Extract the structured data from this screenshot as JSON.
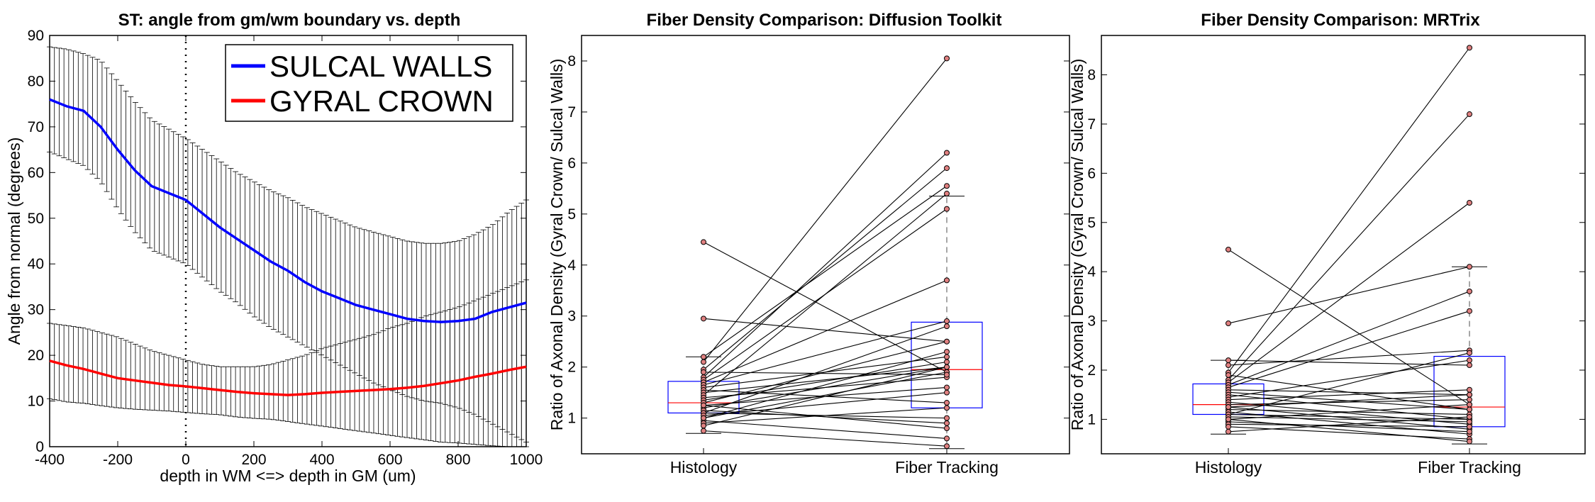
{
  "chart_data": [
    {
      "type": "line",
      "title": "ST: angle from gm/wm boundary vs. depth",
      "xlabel": "depth in WM <=> depth in GM (um)",
      "ylabel": "Angle from normal (degrees)",
      "xlim": [
        -400,
        1000
      ],
      "ylim": [
        0,
        90
      ],
      "xticks": [
        "-400",
        "-200",
        "0",
        "200",
        "400",
        "600",
        "800",
        "1000"
      ],
      "yticks": [
        "0",
        "10",
        "20",
        "30",
        "40",
        "50",
        "60",
        "70",
        "80",
        "90"
      ],
      "legend_position": "top-right",
      "reference_line_x": 0,
      "series": [
        {
          "name": "SULCAL WALLS",
          "color": "#0000ff",
          "x": [
            -400,
            -350,
            -300,
            -250,
            -200,
            -150,
            -100,
            -50,
            0,
            50,
            100,
            150,
            200,
            250,
            300,
            350,
            400,
            450,
            500,
            550,
            600,
            650,
            700,
            750,
            800,
            850,
            900,
            950,
            1000
          ],
          "values": [
            76,
            74.5,
            73.5,
            70,
            65,
            60.5,
            57,
            55.5,
            54,
            51,
            48,
            45.5,
            43,
            40.5,
            38.5,
            36,
            34,
            32.5,
            31,
            30,
            29,
            28,
            27.5,
            27.3,
            27.5,
            28,
            29.5,
            30.5,
            31.5
          ],
          "upper": [
            87.5,
            87,
            86,
            84.5,
            80,
            75.5,
            71.5,
            69.5,
            67.5,
            65,
            62.5,
            60,
            58,
            56,
            54.5,
            52.5,
            51,
            49.5,
            48,
            47,
            46,
            45,
            44.5,
            44.5,
            45,
            46.5,
            48.5,
            51.5,
            54
          ],
          "lower": [
            64.5,
            63,
            61.5,
            58,
            52,
            47,
            43,
            41.5,
            40,
            37,
            34,
            31.5,
            28.5,
            26,
            24,
            22,
            20,
            18,
            16,
            14,
            12.5,
            11,
            10,
            9.5,
            8.5,
            7,
            5,
            3,
            1
          ]
        },
        {
          "name": "GYRAL CROWN",
          "color": "#ff0000",
          "x": [
            -400,
            -350,
            -300,
            -250,
            -200,
            -150,
            -100,
            -50,
            0,
            50,
            100,
            150,
            200,
            250,
            300,
            350,
            400,
            450,
            500,
            550,
            600,
            650,
            700,
            750,
            800,
            850,
            900,
            950,
            1000
          ],
          "values": [
            18.8,
            17.8,
            17,
            16,
            15,
            14.5,
            14,
            13.5,
            13.2,
            12.8,
            12.4,
            12,
            11.7,
            11.5,
            11.3,
            11.5,
            11.8,
            12,
            12.2,
            12.4,
            12.6,
            12.9,
            13.3,
            13.9,
            14.5,
            15.3,
            16,
            16.8,
            17.5
          ],
          "upper": [
            27,
            26.5,
            26,
            25,
            24,
            22.5,
            21,
            20,
            19,
            18,
            17.5,
            17.5,
            17.5,
            18,
            19,
            20,
            21.5,
            22.5,
            23.5,
            24.5,
            26,
            27,
            28.5,
            29.5,
            30.5,
            32,
            33.5,
            35,
            36.5
          ],
          "lower": [
            10.5,
            9.8,
            9.5,
            9,
            8.5,
            8.2,
            8,
            7.8,
            7.5,
            7.2,
            7,
            6.5,
            6.2,
            6,
            5.5,
            5,
            4.5,
            4,
            3.5,
            3,
            2.5,
            2,
            1.5,
            1,
            0.8,
            0.5,
            0.2,
            0,
            0
          ]
        }
      ]
    },
    {
      "type": "box",
      "title": "Fiber Density Comparison: Diffusion Toolkit",
      "ylabel": "Ratio of Axonal Density (Gyral Crown/ Sulcal Walls)",
      "categories": [
        "Histology",
        "Fiber Tracking"
      ],
      "ylim": [
        0.3,
        8.5
      ],
      "yticks": [
        "1",
        "2",
        "3",
        "4",
        "5",
        "6",
        "7",
        "8"
      ],
      "grid": false,
      "box_color": "#0000ff",
      "median_color": "#ff0000",
      "boxes": [
        {
          "q1": 1.1,
          "median": 1.3,
          "q3": 1.72,
          "whisker_low": 0.7,
          "whisker_high": 2.2
        },
        {
          "q1": 1.2,
          "median": 1.95,
          "q3": 2.88,
          "whisker_low": 0.4,
          "whisker_high": 5.35
        }
      ],
      "pairs": [
        [
          4.45,
          1.9
        ],
        [
          2.95,
          2.5
        ],
        [
          2.2,
          5.55
        ],
        [
          2.1,
          8.05
        ],
        [
          1.95,
          5.9
        ],
        [
          1.8,
          6.2
        ],
        [
          1.75,
          5.1
        ],
        [
          1.7,
          3.7
        ],
        [
          1.65,
          2.9
        ],
        [
          1.6,
          2.2
        ],
        [
          1.55,
          1.3
        ],
        [
          1.5,
          2.0
        ],
        [
          1.45,
          5.4
        ],
        [
          1.4,
          1.8
        ],
        [
          1.35,
          2.1
        ],
        [
          1.3,
          2.5
        ],
        [
          1.25,
          1.6
        ],
        [
          1.2,
          2.0
        ],
        [
          1.15,
          0.9
        ],
        [
          1.1,
          2.8
        ],
        [
          1.1,
          1.0
        ],
        [
          1.05,
          1.5
        ],
        [
          1.0,
          1.9
        ],
        [
          0.95,
          0.6
        ],
        [
          0.9,
          1.2
        ],
        [
          0.85,
          2.0
        ],
        [
          0.75,
          0.45
        ],
        [
          1.9,
          1.85
        ],
        [
          1.0,
          2.3
        ],
        [
          1.25,
          0.8
        ]
      ]
    },
    {
      "type": "box",
      "title": "Fiber Density Comparison: MRTrix",
      "ylabel": "Ratio of Axonal Density (Gyral Crown/ Sulcal Walls)",
      "categories": [
        "Histology",
        "Fiber Tracking"
      ],
      "ylim": [
        0.3,
        8.8
      ],
      "yticks": [
        "1",
        "2",
        "3",
        "4",
        "5",
        "6",
        "7",
        "8"
      ],
      "grid": false,
      "box_color": "#0000ff",
      "median_color": "#ff0000",
      "boxes": [
        {
          "q1": 1.1,
          "median": 1.3,
          "q3": 1.72,
          "whisker_low": 0.7,
          "whisker_high": 2.2
        },
        {
          "q1": 0.85,
          "median": 1.25,
          "q3": 2.28,
          "whisker_low": 0.5,
          "whisker_high": 4.1
        }
      ],
      "pairs": [
        [
          4.45,
          1.3
        ],
        [
          2.95,
          4.1
        ],
        [
          2.2,
          2.1
        ],
        [
          2.1,
          2.4
        ],
        [
          1.95,
          8.55
        ],
        [
          1.8,
          7.2
        ],
        [
          1.75,
          5.4
        ],
        [
          1.7,
          3.6
        ],
        [
          1.65,
          3.2
        ],
        [
          1.6,
          1.5
        ],
        [
          1.55,
          1.2
        ],
        [
          1.5,
          1.0
        ],
        [
          1.45,
          2.2
        ],
        [
          1.4,
          1.6
        ],
        [
          1.35,
          0.9
        ],
        [
          1.3,
          1.4
        ],
        [
          1.25,
          0.8
        ],
        [
          1.2,
          1.1
        ],
        [
          1.15,
          0.7
        ],
        [
          1.1,
          2.35
        ],
        [
          1.1,
          1.0
        ],
        [
          1.05,
          0.95
        ],
        [
          1.0,
          1.3
        ],
        [
          0.95,
          0.75
        ],
        [
          0.9,
          0.85
        ],
        [
          0.85,
          0.6
        ],
        [
          0.75,
          1.05
        ],
        [
          1.9,
          1.2
        ],
        [
          1.0,
          0.55
        ],
        [
          1.25,
          1.5
        ]
      ]
    }
  ]
}
